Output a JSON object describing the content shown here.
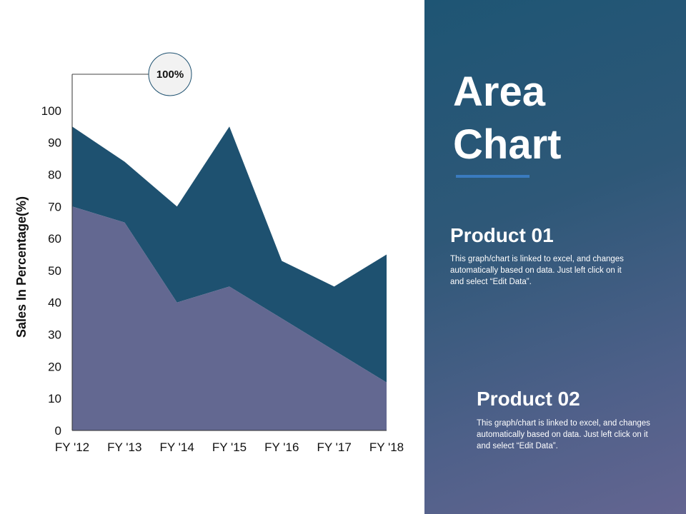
{
  "chart_data": {
    "type": "area",
    "stacked": true,
    "categories": [
      "FY '12",
      "FY '13",
      "FY '14",
      "FY '15",
      "FY '16",
      "FY '17",
      "FY '18"
    ],
    "series": [
      {
        "values": [
          70,
          65,
          40,
          45,
          35,
          25,
          15
        ],
        "color": "#636891"
      },
      {
        "values": [
          25,
          19,
          30,
          50,
          18,
          20,
          40
        ],
        "color": "#1e5170"
      }
    ],
    "ylabel": "Sales In Percentage(%)",
    "ylim": [
      0,
      110
    ],
    "yticks": [
      0,
      10,
      20,
      30,
      40,
      50,
      60,
      70,
      80,
      90,
      100
    ],
    "grid": false,
    "annotation": {
      "label": "100%"
    }
  },
  "panel": {
    "title_line1": "Area",
    "title_line2": "Chart",
    "accent_color": "#3a7bbf",
    "products": [
      {
        "heading": "Product 01",
        "desc": "This graph/chart is linked to excel, and changes automatically based on data. Just left click on it and select “Edit Data”."
      },
      {
        "heading": "Product 02",
        "desc": "This graph/chart is linked to excel, and changes automatically based on data. Just left click on it and select “Edit Data”."
      }
    ]
  }
}
